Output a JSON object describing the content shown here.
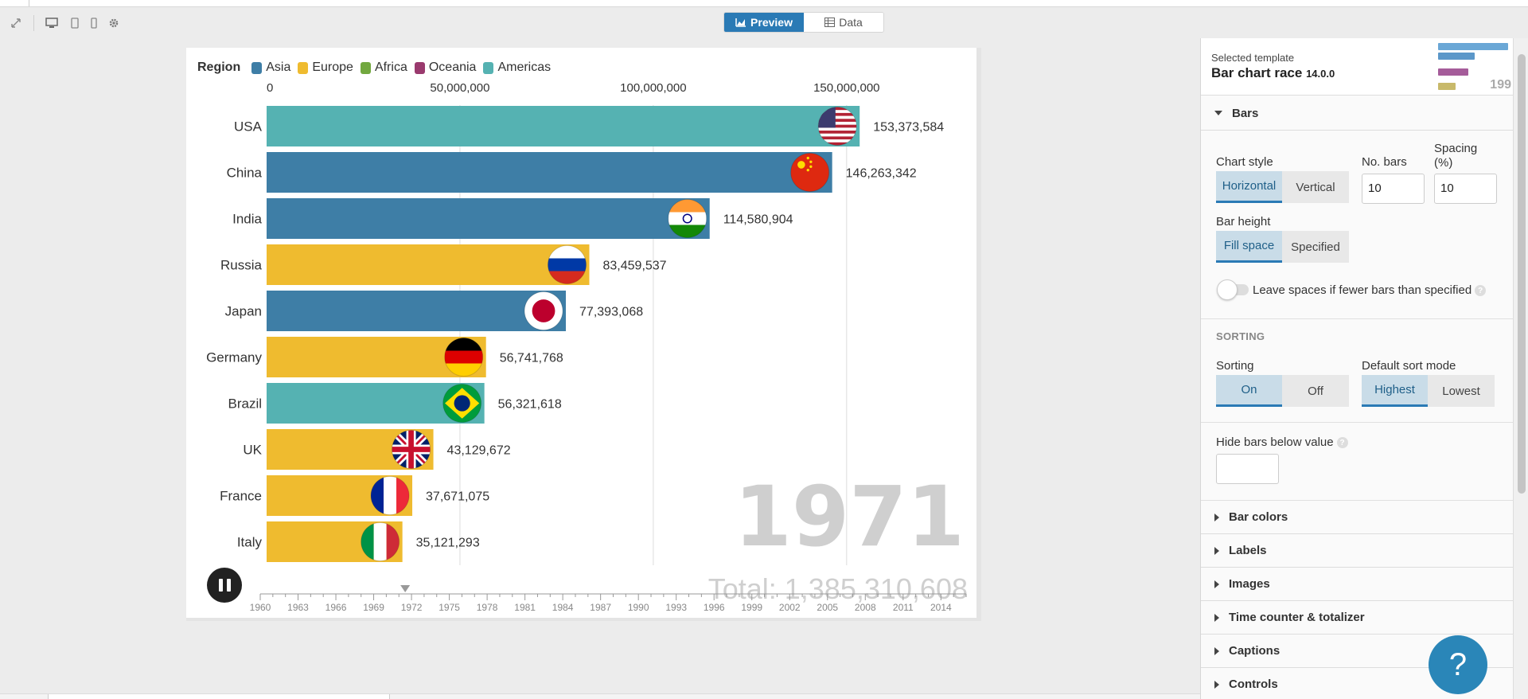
{
  "toolbar": {
    "icons": [
      "expand-icon",
      "desktop-icon",
      "tablet-icon",
      "mobile-icon",
      "settings-icon"
    ],
    "tabs": [
      {
        "label": "Preview",
        "icon": "chart-icon",
        "active": true
      },
      {
        "label": "Data",
        "icon": "table-icon",
        "active": false
      }
    ]
  },
  "legend": {
    "title": "Region",
    "items": [
      {
        "label": "Asia",
        "color": "#3e7ea6"
      },
      {
        "label": "Europe",
        "color": "#efbb2f"
      },
      {
        "label": "Africa",
        "color": "#72a83f"
      },
      {
        "label": "Oceania",
        "color": "#9a3a6e"
      },
      {
        "label": "Americas",
        "color": "#55b2b2"
      }
    ]
  },
  "chart_data": {
    "type": "bar",
    "orientation": "horizontal",
    "axis_ticks": [
      0,
      50000000,
      100000000,
      150000000
    ],
    "axis_tick_labels": [
      "0",
      "50,000,000",
      "100,000,000",
      "150,000,000"
    ],
    "xlim": [
      0,
      177000000
    ],
    "categories": [
      "USA",
      "China",
      "India",
      "Russia",
      "Japan",
      "Germany",
      "Brazil",
      "UK",
      "France",
      "Italy"
    ],
    "values": [
      153373584,
      146263342,
      114580904,
      83459537,
      77393068,
      56741768,
      56321618,
      43129672,
      37671075,
      35121293
    ],
    "value_labels": [
      "153,373,584",
      "146,263,342",
      "114,580,904",
      "83,459,537",
      "77,393,068",
      "56,741,768",
      "56,321,618",
      "43,129,672",
      "37,671,075",
      "35,121,293"
    ],
    "regions": [
      "Americas",
      "Asia",
      "Asia",
      "Europe",
      "Asia",
      "Europe",
      "Americas",
      "Europe",
      "Europe",
      "Europe"
    ],
    "flags": [
      "usa-flag",
      "china-flag",
      "india-flag",
      "russia-flag",
      "japan-flag",
      "germany-flag",
      "brazil-flag",
      "uk-flag",
      "france-flag",
      "italy-flag"
    ],
    "current_year": "1971",
    "total_label": "Total: 1,385,310,608",
    "timeline": {
      "start": 1960,
      "end": 2016,
      "current": 1971.5,
      "tick_labels": [
        "1960",
        "1963",
        "1966",
        "1969",
        "1972",
        "1975",
        "1978",
        "1981",
        "1984",
        "1987",
        "1990",
        "1993",
        "1996",
        "1999",
        "2002",
        "2005",
        "2008",
        "2011",
        "2014"
      ]
    },
    "grid": true
  },
  "panel": {
    "template_label": "Selected template",
    "template_name": "Bar chart race",
    "template_version": "14.0.0",
    "thumb_year": "199",
    "bars_section": "Bars",
    "chart_style_label": "Chart style",
    "chart_style_options": [
      "Horizontal",
      "Vertical"
    ],
    "no_bars_label": "No. bars",
    "no_bars_value": "10",
    "spacing_label_1": "Spacing",
    "spacing_label_2": "(%)",
    "spacing_value": "10",
    "bar_height_label": "Bar height",
    "bar_height_options": [
      "Fill space",
      "Specified"
    ],
    "leave_spaces_label": "Leave spaces if fewer bars than specified",
    "sorting_heading": "SORTING",
    "sorting_label": "Sorting",
    "sorting_options": [
      "On",
      "Off"
    ],
    "default_sort_label": "Default sort mode",
    "default_sort_options": [
      "Highest",
      "Lowest"
    ],
    "hide_bars_label": "Hide bars below value",
    "collapsed_sections": [
      "Bar colors",
      "Labels",
      "Images",
      "Time counter & totalizer",
      "Captions",
      "Controls"
    ]
  },
  "help_label": "?"
}
